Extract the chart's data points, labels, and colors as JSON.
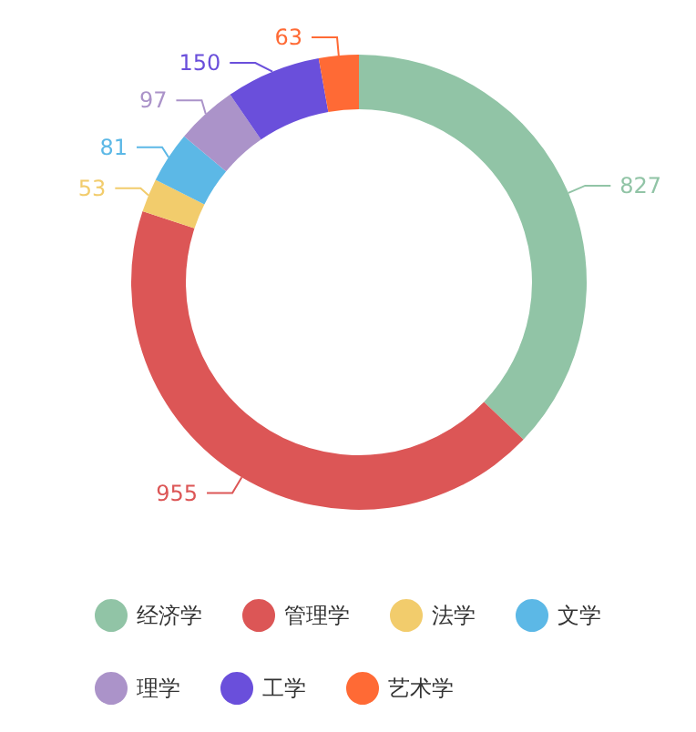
{
  "chart_data": {
    "type": "donut",
    "categories": [
      "经济学",
      "管理学",
      "法学",
      "文学",
      "理学",
      "工学",
      "艺术学"
    ],
    "values": [
      827,
      955,
      53,
      81,
      97,
      150,
      63
    ],
    "colors": [
      "#91c4a6",
      "#dc5656",
      "#f2cc6c",
      "#5cb8e6",
      "#ab93c9",
      "#6a4fdb",
      "#ff6a35"
    ],
    "data_labels": true,
    "legend": "bottom"
  }
}
